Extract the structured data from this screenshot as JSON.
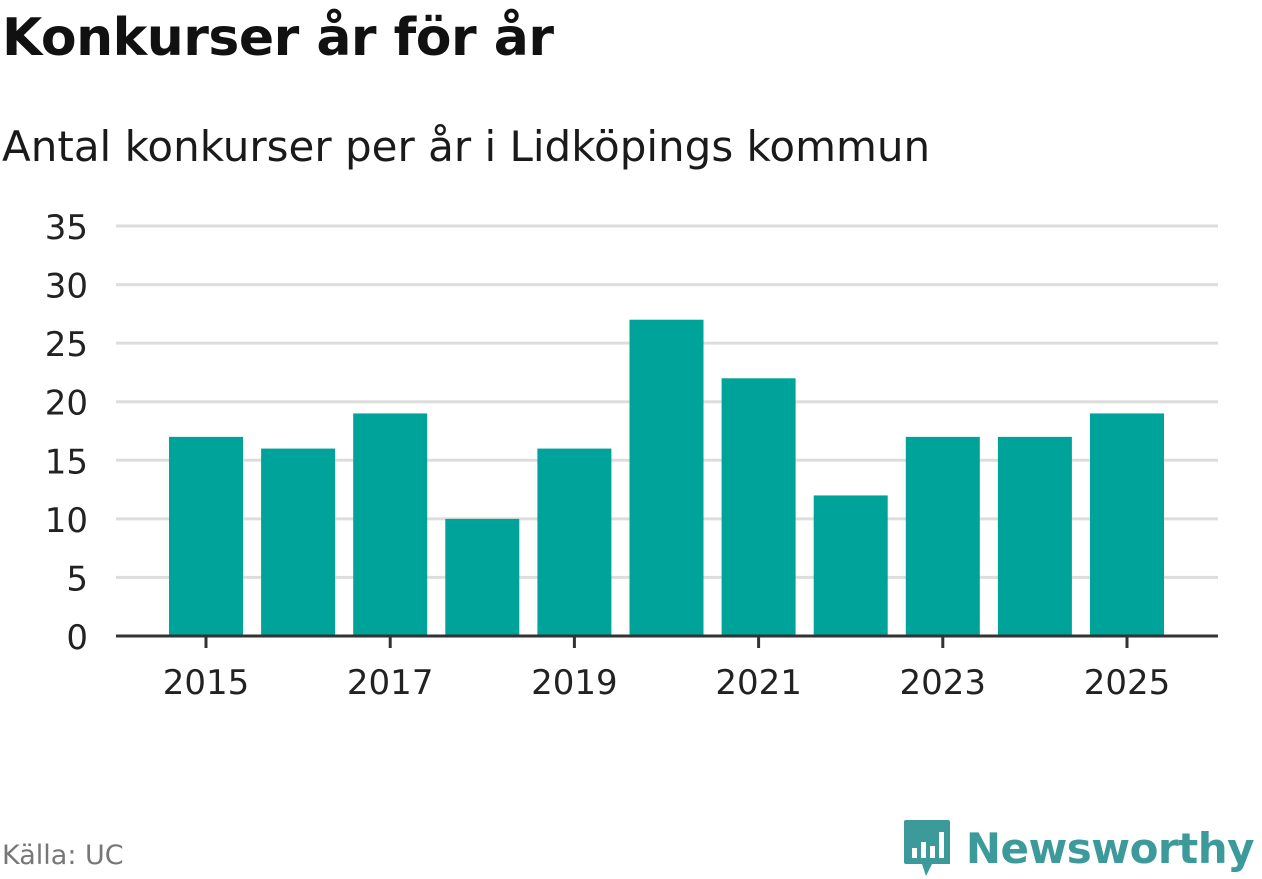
{
  "header": {
    "title": "Konkurser år för år",
    "subtitle": "Antal konkurser per år i Lidköpings kommun"
  },
  "footer": {
    "source": "Källa: UC",
    "brand": "Newsworthy"
  },
  "colors": {
    "bar": "#00a39a",
    "grid": "#dddddd",
    "axis": "#333333",
    "brand": "#3d9a9a"
  },
  "chart_data": {
    "type": "bar",
    "title": "Konkurser år för år",
    "subtitle": "Antal konkurser per år i Lidköpings kommun",
    "xlabel": "",
    "ylabel": "",
    "categories": [
      "2015",
      "2016",
      "2017",
      "2018",
      "2019",
      "2020",
      "2021",
      "2022",
      "2023",
      "2024",
      "2025"
    ],
    "values": [
      17,
      16,
      19,
      10,
      16,
      27,
      22,
      12,
      17,
      17,
      19
    ],
    "ylim": [
      0,
      35
    ],
    "yticks": [
      0,
      5,
      10,
      15,
      20,
      25,
      30,
      35
    ],
    "xtick_labels": [
      "2015",
      "2017",
      "2019",
      "2021",
      "2023",
      "2025"
    ],
    "grid": true,
    "legend": "none"
  }
}
